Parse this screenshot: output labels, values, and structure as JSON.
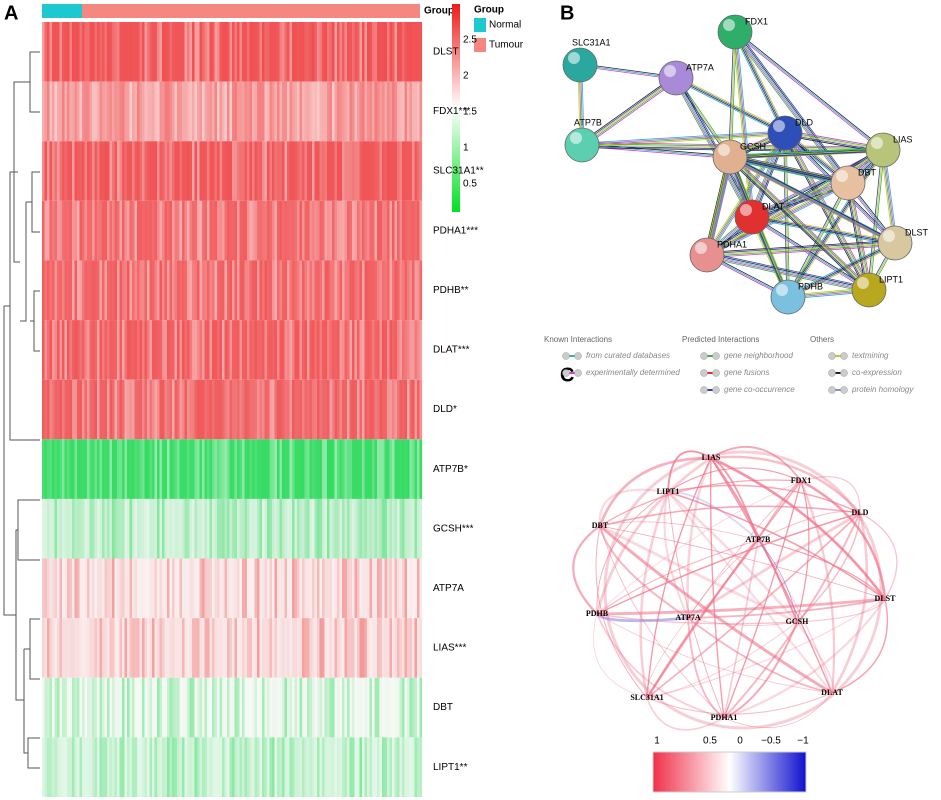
{
  "panel_a": {
    "letter": "A",
    "group_label": "Group",
    "legend": {
      "title": "Group",
      "items": [
        {
          "name": "Normal",
          "color": "#1ec8d0"
        },
        {
          "name": "Tumour",
          "color": "#f4877f"
        }
      ]
    },
    "colorbar_ticks": [
      "2.5",
      "2",
      "1.5",
      "1",
      "0.5"
    ],
    "rows": [
      {
        "label": "DLST",
        "color": "#f0585a"
      },
      {
        "label": "FDX1***",
        "color": "#f6a6a6"
      },
      {
        "label": "SLC31A1**",
        "color": "#f05c5e"
      },
      {
        "label": "PDHA1***",
        "color": "#f26e70"
      },
      {
        "label": "PDHB**",
        "color": "#f26a6c"
      },
      {
        "label": "DLAT***",
        "color": "#f16466"
      },
      {
        "label": "DLD*",
        "color": "#f06a6c"
      },
      {
        "label": "ATP7B*",
        "color": "#3fdc6a"
      },
      {
        "label": "GCSH***",
        "color": "#c8efd2"
      },
      {
        "label": "ATP7A",
        "color": "#f8e4e4"
      },
      {
        "label": "LIAS***",
        "color": "#f8dcdc"
      },
      {
        "label": "DBT",
        "color": "#eef6ee"
      },
      {
        "label": "LIPT1**",
        "color": "#cdf2d6"
      }
    ]
  },
  "panel_b": {
    "letter": "B",
    "nodes": [
      "FDX1",
      "SLC31A1",
      "ATP7A",
      "ATP7B",
      "DLD",
      "LIAS",
      "GCSH",
      "DBT",
      "DLAT",
      "DLST",
      "PDHA1",
      "LIPT1",
      "PDHB"
    ],
    "legend": [
      {
        "title": "Known Interactions",
        "items": [
          "from curated databases",
          "experimentally determined"
        ]
      },
      {
        "title": "Predicted Interactions",
        "items": [
          "gene neighborhood",
          "gene fusions",
          "gene co-occurrence"
        ]
      },
      {
        "title": "Others",
        "items": [
          "textmining",
          "co-expression",
          "protein homology"
        ]
      }
    ]
  },
  "panel_c": {
    "letter": "C",
    "nodes": [
      "LIAS",
      "FDX1",
      "LIPT1",
      "DLD",
      "DBT",
      "ATP7B",
      "DLST",
      "PDHB",
      "ATP7A",
      "GCSH",
      "DLAT",
      "SLC31A1",
      "PDHA1"
    ],
    "colorbar_ticks": [
      "1",
      "0.5",
      "0",
      "−0.5",
      "−1"
    ]
  }
}
